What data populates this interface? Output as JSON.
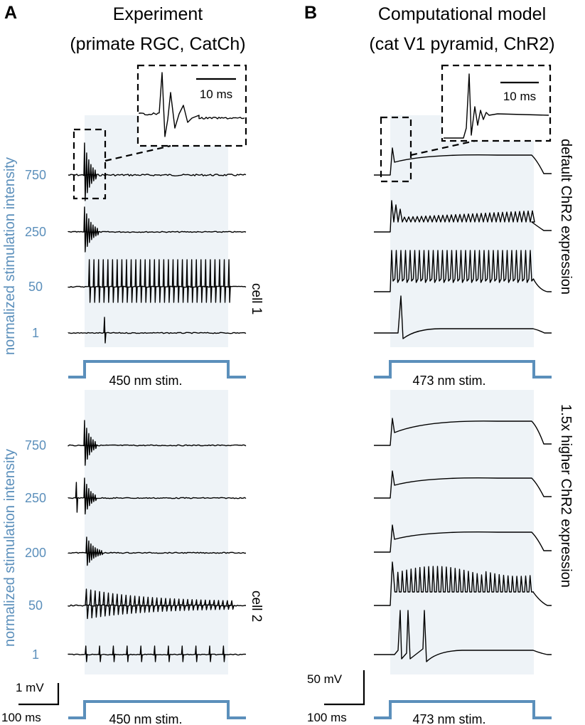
{
  "panel_a": {
    "letter": "A",
    "title_line1": "Experiment",
    "title_line2": "(primate RGC, CatCh)",
    "ylabel": "normalized stimulation intensity",
    "inset_scalebar": "10 ms",
    "cell1_label": "cell 1",
    "cell2_label": "cell 2",
    "stim_label": "450 nm stim.",
    "scalebar_v": "1 mV",
    "scalebar_h": "100 ms"
  },
  "panel_b": {
    "letter": "B",
    "title_line1": "Computational model",
    "title_line2": "(cat V1 pyramid, ChR2)",
    "inset_scalebar": "10 ms",
    "side_label_top": "default ChR2 expression",
    "side_label_bottom": "1.5x higher ChR2 expression",
    "stim_label": "473 nm stim.",
    "scalebar_v": "50 mV",
    "scalebar_h": "100 ms"
  },
  "colors": {
    "accent": "#5b8fbb",
    "stim_background": "#eef3f7",
    "trace": "#000000"
  },
  "chart_data": [
    {
      "type": "line",
      "panel": "A, cell 1",
      "ylabel": "normalized stimulation intensity",
      "stimulus": "450 nm stim.",
      "series": [
        {
          "label": "750",
          "response": "transient: single spike burst at stimulus onset"
        },
        {
          "label": "250",
          "response": "transient: burst at onset, then flat"
        },
        {
          "label": "50",
          "response": "sustained: ~31 spikes throughout stimulus"
        },
        {
          "label": "1",
          "response": "one spike shortly after onset"
        }
      ]
    },
    {
      "type": "line",
      "panel": "A, cell 2",
      "ylabel": "normalized stimulation intensity",
      "stimulus": "450 nm stim.",
      "series": [
        {
          "label": "750",
          "response": "transient burst at onset"
        },
        {
          "label": "250",
          "response": "spike before onset, burst at onset"
        },
        {
          "label": "200",
          "response": "damped oscillation at onset"
        },
        {
          "label": "50",
          "response": "sustained spiking with decreasing amplitude"
        },
        {
          "label": "1",
          "response": "regular spikes (~11) throughout"
        }
      ]
    },
    {
      "type": "line",
      "panel": "B, default ChR2 expression",
      "stimulus": "473 nm stim.",
      "series": [
        {
          "label": "trace 1",
          "response": "depolarization block after single spike"
        },
        {
          "label": "trace 2",
          "response": "onset spike, then growing oscillations"
        },
        {
          "label": "trace 3",
          "response": "sustained spiking ~31 spikes"
        },
        {
          "label": "trace 4",
          "response": "single spike at onset"
        }
      ]
    },
    {
      "type": "line",
      "panel": "B, 1.5x higher ChR2 expression",
      "stimulus": "473 nm stim.",
      "series": [
        {
          "label": "trace 1",
          "response": "depolarization block"
        },
        {
          "label": "trace 2",
          "response": "depolarization block"
        },
        {
          "label": "trace 3",
          "response": "depolarization block with ringing"
        },
        {
          "label": "trace 4",
          "response": "onset burst then sustained spiking"
        },
        {
          "label": "trace 5",
          "response": "three spikes near onset"
        }
      ]
    }
  ]
}
